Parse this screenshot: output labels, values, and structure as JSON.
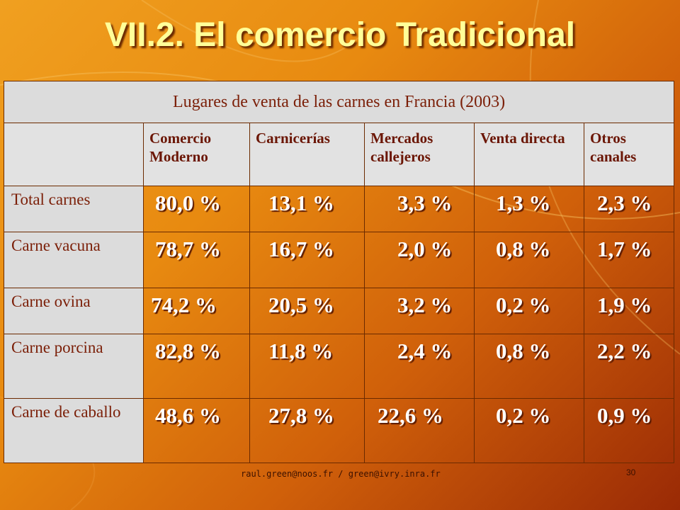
{
  "slide": {
    "title": "VII.2. El comercio Tradicional",
    "footer": "raul.green@noos.fr / green@ivry.inra.fr",
    "page_number": "30"
  },
  "table": {
    "caption": "Lugares de venta de las carnes en Francia (2003)",
    "headers": [
      "Comercio Moderno",
      "Carnicerías",
      "Mercados callejeros",
      "Venta directa",
      "Otros canales"
    ],
    "rows": [
      {
        "label": "Total carnes",
        "values": [
          "80,0 %",
          "13,1 %",
          "3,3 %",
          "1,3 %",
          "2,3 %"
        ]
      },
      {
        "label": "Carne vacuna",
        "values": [
          "78,7 %",
          "16,7 %",
          "2,0 %",
          "0,8 %",
          "1,7 %"
        ]
      },
      {
        "label": "Carne ovina",
        "values": [
          "74,2 %",
          "20,5 %",
          "3,2 %",
          "0,2 %",
          "1,9 %"
        ]
      },
      {
        "label": "Carne porcina",
        "values": [
          "82,8 %",
          "11,8 %",
          "2,4 %",
          "0,8 %",
          "2,2 %"
        ]
      },
      {
        "label": "Carne de caballo",
        "values": [
          "48,6 %",
          "27,8 %",
          "22,6 %",
          "0,2 %",
          "0,9 %"
        ]
      }
    ]
  },
  "colors": {
    "title": "#ffff99",
    "header_bg": "#e2e2e2",
    "label_text": "#7b1f08",
    "value_text": "#ffffff"
  }
}
